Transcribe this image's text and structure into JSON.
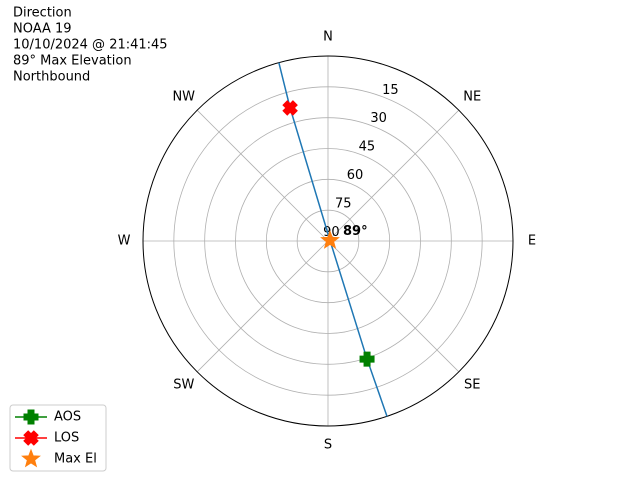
{
  "chart_data": {
    "type": "polar",
    "title_lines": [
      "Direction",
      "NOAA 19",
      "10/10/2024 @ 21:41:45",
      "89° Max Elevation",
      "Northbound"
    ],
    "rlim": [
      90,
      0
    ],
    "rticks": [
      15,
      30,
      45,
      60,
      75,
      90
    ],
    "thetaticks": [
      {
        "value": 0,
        "label": "N"
      },
      {
        "value": 45,
        "label": "NE"
      },
      {
        "value": 90,
        "label": "E"
      },
      {
        "value": 135,
        "label": "SE"
      },
      {
        "value": 180,
        "label": "S"
      },
      {
        "value": 225,
        "label": "SW"
      },
      {
        "value": 270,
        "label": "W"
      },
      {
        "value": 315,
        "label": "NW"
      }
    ],
    "grid": true,
    "legend": "lower left",
    "series": [
      {
        "color": "#1f77b4",
        "marker": "none",
        "line": true,
        "theta": [
          161.4,
          161.7,
          75,
          344.1,
          344.6
        ],
        "r": [
          0,
          29.5,
          89,
          22.7,
          0
        ]
      },
      {
        "name": "AOS",
        "color": "#008000",
        "marker": "plus",
        "line": true,
        "theta": [
          161.7
        ],
        "r": [
          29.5
        ]
      },
      {
        "name": "LOS",
        "color": "#ff0000",
        "marker": "x",
        "line": true,
        "theta": [
          344.1
        ],
        "r": [
          22.7
        ]
      },
      {
        "name": "Max El",
        "color": "#ff7f0e",
        "marker": "star",
        "line": false,
        "theta": [
          75
        ],
        "r": [
          89
        ]
      }
    ],
    "annotation": {
      "text": "89°",
      "theta": 75,
      "r": 89
    }
  }
}
